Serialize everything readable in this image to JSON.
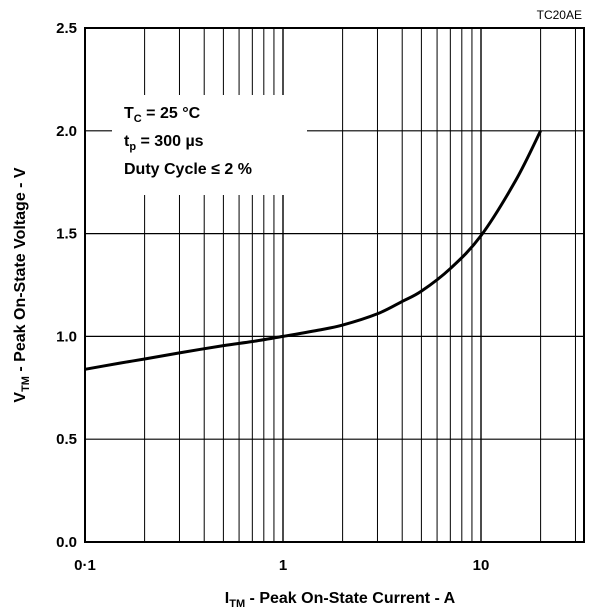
{
  "chart_data": {
    "type": "line",
    "figure_code": "TC20AE",
    "xlabel": {
      "main": "I",
      "sub": "TM",
      "rest": " - Peak On-State Current - A"
    },
    "ylabel": {
      "main": "V",
      "sub": "TM",
      "rest": " - Peak On-State Voltage - V"
    },
    "x_scale": "log",
    "xlim": [
      0.1,
      40
    ],
    "ylim": [
      0.0,
      2.5
    ],
    "x_tick_values": [
      0.1,
      1,
      10
    ],
    "x_tick_labels": [
      "0·1",
      "1",
      "10"
    ],
    "y_tick_values": [
      0.0,
      0.5,
      1.0,
      1.5,
      2.0,
      2.5
    ],
    "y_tick_labels": [
      "0.0",
      "0.5",
      "1.0",
      "1.5",
      "2.0",
      "2.5"
    ],
    "grid": true,
    "conditions": [
      {
        "main": "T",
        "sub": "C",
        "rest": " = 25 °C"
      },
      {
        "main": "t",
        "sub": "p",
        "rest": " = 300 µs"
      },
      {
        "main": "Duty Cycle ≤ 2 %",
        "sub": "",
        "rest": ""
      }
    ],
    "legend_position": "top-left",
    "series": [
      {
        "x": [
          0.1,
          0.15,
          0.2,
          0.3,
          0.5,
          0.7,
          1,
          1.5,
          2,
          3,
          4,
          5,
          7,
          10,
          15,
          20
        ],
        "y": [
          0.84,
          0.87,
          0.89,
          0.92,
          0.955,
          0.975,
          1.0,
          1.03,
          1.055,
          1.11,
          1.17,
          1.22,
          1.33,
          1.49,
          1.76,
          2.0
        ]
      }
    ]
  }
}
